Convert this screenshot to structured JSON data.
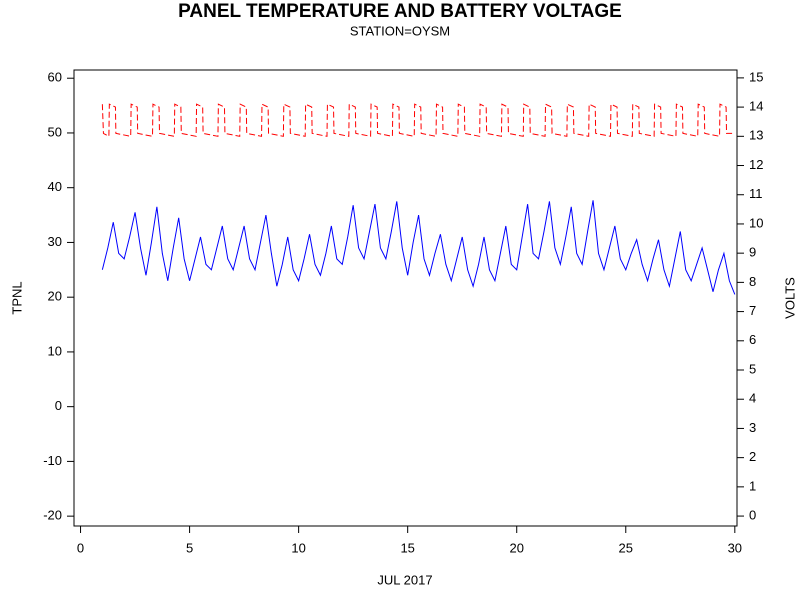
{
  "chart_data": {
    "type": "line",
    "title": "PANEL TEMPERATURE AND BATTERY VOLTAGE",
    "subtitle": "STATION=OYSM",
    "x_label": "JUL 2017",
    "y_label": "TPNL",
    "y2_label": "VOLTS",
    "xlim": [
      -0.3,
      30.1
    ],
    "xticks": [
      0,
      5,
      10,
      15,
      20,
      25,
      30
    ],
    "ylim": [
      -21.8,
      61.5
    ],
    "yticks": [
      -20,
      -10,
      0,
      10,
      20,
      30,
      40,
      50,
      60
    ],
    "y2lim": [
      -0.34,
      15.27
    ],
    "y2ticks": [
      0,
      1,
      2,
      3,
      4,
      5,
      6,
      7,
      8,
      9,
      10,
      11,
      12,
      13,
      14,
      15
    ],
    "series": [
      {
        "name": "TPNL",
        "color": "#0000ff",
        "dash": false,
        "x": [
          1,
          1.25,
          1.5,
          1.75,
          2,
          2.25,
          2.5,
          2.75,
          3,
          3.25,
          3.5,
          3.75,
          4,
          4.25,
          4.5,
          4.75,
          5,
          5.25,
          5.5,
          5.75,
          6,
          6.25,
          6.5,
          6.75,
          7,
          7.25,
          7.5,
          7.75,
          8,
          8.25,
          8.5,
          8.75,
          9,
          9.25,
          9.5,
          9.75,
          10,
          10.25,
          10.5,
          10.75,
          11,
          11.25,
          11.5,
          11.75,
          12,
          12.25,
          12.5,
          12.75,
          13,
          13.25,
          13.5,
          13.75,
          14,
          14.25,
          14.5,
          14.75,
          15,
          15.25,
          15.5,
          15.75,
          16,
          16.25,
          16.5,
          16.75,
          17,
          17.25,
          17.5,
          17.75,
          18,
          18.25,
          18.5,
          18.75,
          19,
          19.25,
          19.5,
          19.75,
          20,
          20.25,
          20.5,
          20.75,
          21,
          21.25,
          21.5,
          21.75,
          22,
          22.25,
          22.5,
          22.75,
          23,
          23.25,
          23.5,
          23.75,
          24,
          24.25,
          24.5,
          24.75,
          25,
          25.25,
          25.5,
          25.75,
          26,
          26.25,
          26.5,
          26.75,
          27,
          27.25,
          27.5,
          27.75,
          28,
          28.25,
          28.5,
          28.75,
          29,
          29.25,
          29.5,
          29.75,
          30
        ],
        "values": [
          25,
          29,
          33.7,
          28,
          27,
          31,
          35.5,
          29,
          24,
          30,
          36.5,
          28,
          23,
          29,
          34.5,
          27,
          23,
          27,
          31,
          26,
          25,
          29,
          33,
          27,
          25,
          29,
          33,
          27,
          25,
          30,
          35,
          28,
          22,
          26,
          31,
          25,
          23,
          27,
          31.5,
          26,
          24,
          28,
          33,
          27,
          26,
          31,
          36.8,
          29,
          27,
          32,
          37,
          29,
          27,
          32,
          37.5,
          29,
          24,
          30,
          35,
          27,
          24,
          28,
          31.5,
          26,
          23,
          27,
          31,
          25,
          22,
          26,
          31,
          25,
          23,
          28,
          33,
          26,
          25,
          31,
          37,
          28,
          27,
          32,
          37.5,
          29,
          26,
          31,
          36.5,
          28,
          26,
          32,
          37.7,
          28,
          25,
          29,
          33,
          27,
          25,
          28,
          30.5,
          26,
          23,
          27,
          30.5,
          25,
          22,
          27,
          32,
          25,
          23,
          26,
          29,
          25,
          21,
          25,
          28,
          23,
          20.5
        ]
      },
      {
        "name": "VOLTS",
        "color": "#ff0000",
        "axis": "y2",
        "dash": true,
        "x": [
          1,
          1.05,
          1.3,
          1.32,
          1.6,
          1.62,
          2.3,
          2.32,
          2.6,
          2.62,
          3.3,
          3.32,
          3.6,
          3.62,
          4.3,
          4.32,
          4.6,
          4.62,
          5.3,
          5.32,
          5.6,
          5.62,
          6.3,
          6.32,
          6.6,
          6.62,
          7.3,
          7.32,
          7.6,
          7.62,
          8.3,
          8.32,
          8.6,
          8.62,
          9.3,
          9.32,
          9.6,
          9.62,
          10.3,
          10.32,
          10.6,
          10.62,
          11.3,
          11.32,
          11.6,
          11.62,
          12.3,
          12.32,
          12.6,
          12.62,
          13.3,
          13.32,
          13.6,
          13.62,
          14.3,
          14.32,
          14.6,
          14.62,
          15.3,
          15.32,
          15.6,
          15.62,
          16.3,
          16.32,
          16.6,
          16.62,
          17.3,
          17.32,
          17.6,
          17.62,
          18.3,
          18.32,
          18.6,
          18.62,
          19.3,
          19.32,
          19.6,
          19.62,
          20.3,
          20.32,
          20.6,
          20.62,
          21.3,
          21.32,
          21.6,
          21.62,
          22.3,
          22.32,
          22.6,
          22.62,
          23.3,
          23.32,
          23.6,
          23.62,
          24.3,
          24.32,
          24.6,
          24.62,
          25.3,
          25.32,
          25.6,
          25.62,
          26.3,
          26.32,
          26.6,
          26.62,
          27.3,
          27.32,
          27.6,
          27.62,
          28.3,
          28.32,
          28.6,
          28.62,
          29.3,
          29.32,
          29.6,
          29.62,
          30
        ],
        "values": [
          14.1,
          13.1,
          13,
          14.1,
          14,
          13.1,
          13,
          14.1,
          14,
          13.1,
          13,
          14.1,
          14,
          13.1,
          13,
          14.1,
          14,
          13.1,
          13,
          14.1,
          14,
          13.1,
          13,
          14.1,
          14,
          13.1,
          13,
          14.1,
          14,
          13.1,
          13,
          14.1,
          14,
          13.1,
          13,
          14.1,
          14,
          13.1,
          13,
          14.1,
          14,
          13.1,
          13,
          14.1,
          14,
          13.1,
          13,
          14.1,
          14,
          13.1,
          13,
          14.1,
          14,
          13.1,
          13,
          14.1,
          14,
          13.1,
          13,
          14.1,
          14,
          13.1,
          13,
          14.1,
          14,
          13.1,
          13,
          14.1,
          14,
          13.1,
          13,
          14.1,
          14,
          13.1,
          13,
          14.1,
          14,
          13.1,
          13,
          14.1,
          14,
          13.1,
          13,
          14.1,
          14,
          13.1,
          13,
          14.1,
          14,
          13.1,
          13,
          14.1,
          14,
          13.1,
          13,
          14.1,
          14,
          13.1,
          13,
          14.1,
          14,
          13.1,
          13,
          14.1,
          14,
          13.1,
          13,
          14.1,
          14,
          13.1,
          13,
          14.1,
          14,
          13.1,
          13,
          14.1,
          14,
          13.1,
          13.1
        ]
      }
    ]
  }
}
